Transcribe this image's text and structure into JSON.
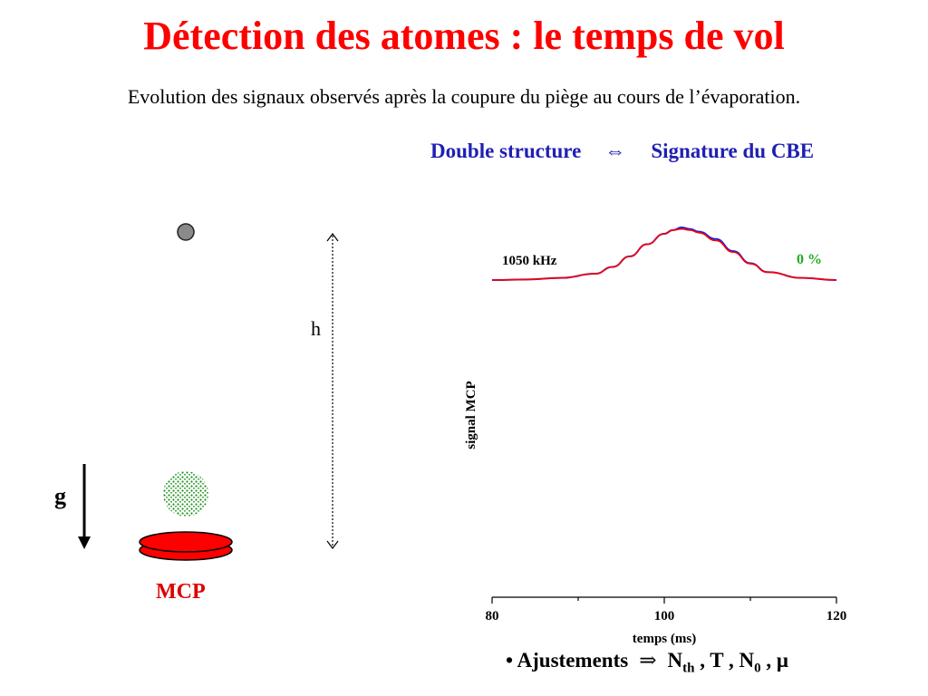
{
  "slide": {
    "title": "Détection des atomes : le temps de vol",
    "subtitle": "Evolution des signaux observés après la coupure du piège au cours de l’évaporation.",
    "structure_left": "Double structure",
    "structure_symbol": "⇔",
    "structure_right": "Signature du CBE"
  },
  "schematic": {
    "height_label": "h",
    "gravity_label": "g",
    "detector_label": "MCP"
  },
  "fit": {
    "bullet": "• Ajustements",
    "arrow": "⇒",
    "n": "N",
    "th": "th",
    "t": ", T , N",
    "zero": "0",
    "mu": ", μ"
  },
  "colors": {
    "title": "#ff0000",
    "structure": "#1f1fb4",
    "signal_data": "#1f1fd6",
    "signal_fit": "#ff0000",
    "percent": "#22aa22",
    "mcp": "#ff0000"
  },
  "chart_data": {
    "type": "line",
    "xlabel": "temps (ms)",
    "ylabel": "signal MCP",
    "xlim": [
      80,
      120
    ],
    "xticks": [
      "80",
      "100",
      "120"
    ],
    "curve_label": "1050 kHz",
    "percent_label": "0 %",
    "series": [
      {
        "name": "data",
        "x": [
          80,
          84,
          88,
          92,
          94,
          96,
          98,
          100,
          101,
          102,
          103,
          104,
          106,
          108,
          110,
          112,
          116,
          120
        ],
        "y": [
          0.0,
          0.01,
          0.04,
          0.12,
          0.25,
          0.45,
          0.68,
          0.88,
          0.95,
          1.0,
          0.97,
          0.92,
          0.78,
          0.55,
          0.32,
          0.15,
          0.04,
          0.0
        ]
      },
      {
        "name": "fit",
        "x": [
          80,
          84,
          88,
          92,
          94,
          96,
          98,
          100,
          101,
          102,
          103,
          104,
          106,
          108,
          110,
          112,
          116,
          120
        ],
        "y": [
          0.0,
          0.01,
          0.04,
          0.12,
          0.25,
          0.45,
          0.68,
          0.88,
          0.95,
          0.97,
          0.95,
          0.9,
          0.75,
          0.53,
          0.31,
          0.15,
          0.04,
          0.0
        ]
      }
    ]
  }
}
